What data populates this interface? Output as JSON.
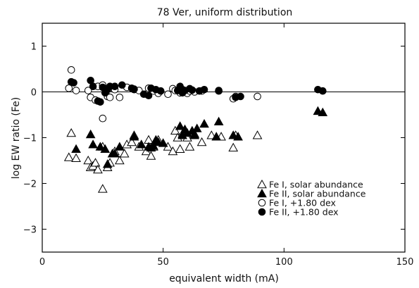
{
  "chart_data": {
    "type": "scatter",
    "title": "78 Ver, uniform distribution",
    "xlabel": "equivalent width (mA)",
    "ylabel": "log EW ratio (Fe)",
    "xlim": [
      0,
      150
    ],
    "ylim": [
      -3.5,
      1.5
    ],
    "xticks": [
      0,
      50,
      100,
      150
    ],
    "yticks": [
      1,
      0,
      -1,
      -2,
      -3
    ],
    "xtick_labels": [
      "0",
      "50",
      "100",
      "150"
    ],
    "ytick_labels": [
      "1",
      "0",
      "−1",
      "−2",
      "−3"
    ],
    "reference_line_y": 0,
    "legend_position": "lower-right",
    "series": [
      {
        "name": "Fe I,  solar abundance",
        "marker": "open-triangle",
        "points": [
          [
            11,
            -1.43
          ],
          [
            12,
            -0.9
          ],
          [
            14,
            -1.45
          ],
          [
            19,
            -1.5
          ],
          [
            20,
            -1.65
          ],
          [
            21,
            -1.62
          ],
          [
            22,
            -1.55
          ],
          [
            23,
            -1.7
          ],
          [
            25,
            -2.12
          ],
          [
            25,
            -1.2
          ],
          [
            27,
            -1.65
          ],
          [
            28,
            -1.55
          ],
          [
            30,
            -1.3
          ],
          [
            32,
            -1.5
          ],
          [
            34,
            -1.35
          ],
          [
            35,
            -1.15
          ],
          [
            37,
            -1.1
          ],
          [
            38,
            -0.95
          ],
          [
            40,
            -1.2
          ],
          [
            43,
            -1.3
          ],
          [
            44,
            -1.05
          ],
          [
            45,
            -1.4
          ],
          [
            46,
            -1.2
          ],
          [
            48,
            -1.05
          ],
          [
            52,
            -1.2
          ],
          [
            54,
            -1.3
          ],
          [
            55,
            -0.85
          ],
          [
            56,
            -1.0
          ],
          [
            57,
            -1.25
          ],
          [
            58,
            -0.92
          ],
          [
            60,
            -1.0
          ],
          [
            61,
            -1.2
          ],
          [
            63,
            -0.92
          ],
          [
            66,
            -1.1
          ],
          [
            70,
            -0.95
          ],
          [
            74,
            -0.98
          ],
          [
            79,
            -1.22
          ],
          [
            80,
            -0.95
          ],
          [
            89,
            -0.95
          ]
        ]
      },
      {
        "name": "Fe II, solar abundance",
        "marker": "filled-triangle",
        "points": [
          [
            14,
            -1.25
          ],
          [
            20,
            -0.93
          ],
          [
            21,
            -1.15
          ],
          [
            24,
            -1.2
          ],
          [
            26,
            -1.25
          ],
          [
            27,
            -1.58
          ],
          [
            29,
            -1.35
          ],
          [
            30,
            -1.35
          ],
          [
            32,
            -1.2
          ],
          [
            38,
            -0.98
          ],
          [
            41,
            -1.15
          ],
          [
            44,
            -1.2
          ],
          [
            45,
            -1.22
          ],
          [
            46,
            -1.18
          ],
          [
            47,
            -1.05
          ],
          [
            48,
            -1.1
          ],
          [
            50,
            -1.12
          ],
          [
            57,
            -0.75
          ],
          [
            58,
            -0.95
          ],
          [
            59,
            -0.82
          ],
          [
            60,
            -0.9
          ],
          [
            62,
            -0.85
          ],
          [
            63,
            -0.95
          ],
          [
            64,
            -0.8
          ],
          [
            67,
            -0.7
          ],
          [
            72,
            -0.98
          ],
          [
            73,
            -0.65
          ],
          [
            79,
            -0.95
          ],
          [
            81,
            -0.98
          ],
          [
            114,
            -0.42
          ],
          [
            116,
            -0.45
          ]
        ]
      },
      {
        "name": "Fe I,  +1.80 dex",
        "marker": "open-circle",
        "points": [
          [
            11,
            0.08
          ],
          [
            12,
            0.48
          ],
          [
            14,
            0.03
          ],
          [
            19,
            0.03
          ],
          [
            20,
            -0.12
          ],
          [
            22,
            -0.18
          ],
          [
            23,
            0.12
          ],
          [
            25,
            -0.58
          ],
          [
            25,
            0.15
          ],
          [
            27,
            -0.1
          ],
          [
            28,
            -0.12
          ],
          [
            30,
            0.05
          ],
          [
            32,
            -0.12
          ],
          [
            35,
            0.1
          ],
          [
            38,
            0.05
          ],
          [
            40,
            0.03
          ],
          [
            43,
            -0.05
          ],
          [
            44,
            0.08
          ],
          [
            46,
            0.02
          ],
          [
            48,
            -0.03
          ],
          [
            52,
            -0.05
          ],
          [
            54,
            0.07
          ],
          [
            55,
            0.03
          ],
          [
            57,
            -0.02
          ],
          [
            58,
            0.05
          ],
          [
            60,
            -0.03
          ],
          [
            61,
            0.02
          ],
          [
            63,
            0.0
          ],
          [
            66,
            0.02
          ],
          [
            73,
            0.02
          ],
          [
            79,
            -0.15
          ],
          [
            80,
            -0.1
          ],
          [
            89,
            -0.1
          ]
        ]
      },
      {
        "name": "Fe II, +1.80 dex",
        "marker": "filled-circle",
        "points": [
          [
            12,
            0.22
          ],
          [
            13,
            0.2
          ],
          [
            20,
            0.25
          ],
          [
            21,
            0.12
          ],
          [
            23,
            -0.2
          ],
          [
            24,
            -0.22
          ],
          [
            25,
            0.1
          ],
          [
            26,
            -0.02
          ],
          [
            27,
            0.05
          ],
          [
            28,
            0.12
          ],
          [
            30,
            0.12
          ],
          [
            33,
            0.15
          ],
          [
            37,
            0.08
          ],
          [
            38,
            0.06
          ],
          [
            42,
            -0.05
          ],
          [
            44,
            -0.08
          ],
          [
            45,
            0.08
          ],
          [
            47,
            0.05
          ],
          [
            49,
            0.02
          ],
          [
            56,
            0.03
          ],
          [
            57,
            0.12
          ],
          [
            58,
            -0.02
          ],
          [
            59,
            0.03
          ],
          [
            61,
            0.07
          ],
          [
            62,
            0.04
          ],
          [
            65,
            0.02
          ],
          [
            67,
            0.05
          ],
          [
            73,
            0.03
          ],
          [
            80,
            -0.12
          ],
          [
            82,
            -0.1
          ],
          [
            114,
            0.05
          ],
          [
            116,
            0.02
          ]
        ]
      }
    ]
  }
}
